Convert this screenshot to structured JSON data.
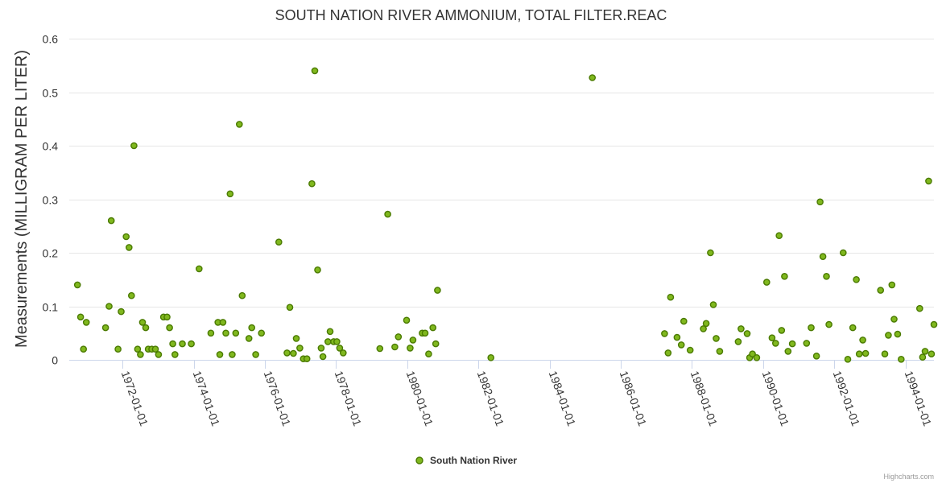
{
  "chart_data": {
    "type": "scatter",
    "title": "SOUTH NATION RIVER AMMONIUM, TOTAL FILTER.REAC",
    "xlabel": "",
    "ylabel": "Measurements (MILLIGRAM PER LITER)",
    "ylim": [
      0,
      0.6
    ],
    "yticks": [
      0,
      0.1,
      0.2,
      0.3,
      0.4,
      0.5,
      0.6
    ],
    "ytick_labels": [
      "0",
      "0.1",
      "0.2",
      "0.3",
      "0.4",
      "0.5",
      "0.6"
    ],
    "xlim": [
      1970.5,
      1994.8
    ],
    "xticks": [
      1972,
      1974,
      1976,
      1978,
      1980,
      1982,
      1984,
      1986,
      1988,
      1990,
      1992,
      1994
    ],
    "xtick_labels": [
      "1972-01-01",
      "1974-01-01",
      "1976-01-01",
      "1978-01-01",
      "1980-01-01",
      "1982-01-01",
      "1984-01-01",
      "1986-01-01",
      "1988-01-01",
      "1990-01-01",
      "1992-01-01",
      "1994-01-01"
    ],
    "grid": true,
    "legend_position": "bottom-center",
    "series": [
      {
        "name": "South Nation River",
        "color": "#80b81e",
        "stroke": "#4a7a00",
        "points": [
          [
            1970.73,
            0.14
          ],
          [
            1970.82,
            0.08
          ],
          [
            1970.9,
            0.02
          ],
          [
            1970.98,
            0.07
          ],
          [
            1971.52,
            0.06
          ],
          [
            1971.62,
            0.1
          ],
          [
            1971.68,
            0.26
          ],
          [
            1971.87,
            0.02
          ],
          [
            1971.96,
            0.09
          ],
          [
            1972.1,
            0.23
          ],
          [
            1972.18,
            0.21
          ],
          [
            1972.25,
            0.12
          ],
          [
            1972.32,
            0.4
          ],
          [
            1972.42,
            0.02
          ],
          [
            1972.5,
            0.01
          ],
          [
            1972.56,
            0.07
          ],
          [
            1972.65,
            0.06
          ],
          [
            1972.72,
            0.02
          ],
          [
            1972.82,
            0.02
          ],
          [
            1972.92,
            0.02
          ],
          [
            1973.01,
            0.01
          ],
          [
            1973.15,
            0.08
          ],
          [
            1973.25,
            0.08
          ],
          [
            1973.32,
            0.06
          ],
          [
            1973.41,
            0.03
          ],
          [
            1973.47,
            0.01
          ],
          [
            1973.68,
            0.03
          ],
          [
            1973.93,
            0.03
          ],
          [
            1974.15,
            0.17
          ],
          [
            1974.48,
            0.05
          ],
          [
            1974.68,
            0.07
          ],
          [
            1974.73,
            0.01
          ],
          [
            1974.82,
            0.07
          ],
          [
            1974.9,
            0.05
          ],
          [
            1975.02,
            0.31
          ],
          [
            1975.08,
            0.01
          ],
          [
            1975.18,
            0.05
          ],
          [
            1975.28,
            0.44
          ],
          [
            1975.36,
            0.12
          ],
          [
            1975.55,
            0.04
          ],
          [
            1975.63,
            0.06
          ],
          [
            1975.74,
            0.01
          ],
          [
            1975.9,
            0.05
          ],
          [
            1976.39,
            0.22
          ],
          [
            1976.62,
            0.013
          ],
          [
            1976.7,
            0.098
          ],
          [
            1976.8,
            0.012
          ],
          [
            1976.88,
            0.04
          ],
          [
            1976.98,
            0.022
          ],
          [
            1977.08,
            0.002
          ],
          [
            1977.18,
            0.002
          ],
          [
            1977.32,
            0.329
          ],
          [
            1977.4,
            0.54
          ],
          [
            1977.48,
            0.168
          ],
          [
            1977.58,
            0.022
          ],
          [
            1977.63,
            0.006
          ],
          [
            1977.77,
            0.034
          ],
          [
            1977.83,
            0.053
          ],
          [
            1977.93,
            0.034
          ],
          [
            1978.02,
            0.034
          ],
          [
            1978.1,
            0.022
          ],
          [
            1978.2,
            0.013
          ],
          [
            1979.23,
            0.021
          ],
          [
            1979.45,
            0.272
          ],
          [
            1979.65,
            0.024
          ],
          [
            1979.75,
            0.043
          ],
          [
            1979.98,
            0.074
          ],
          [
            1980.08,
            0.022
          ],
          [
            1980.16,
            0.037
          ],
          [
            1980.42,
            0.05
          ],
          [
            1980.5,
            0.05
          ],
          [
            1980.6,
            0.011
          ],
          [
            1980.72,
            0.06
          ],
          [
            1980.8,
            0.03
          ],
          [
            1980.85,
            0.13
          ],
          [
            1982.35,
            0.004
          ],
          [
            1985.2,
            0.527
          ],
          [
            1987.23,
            0.049
          ],
          [
            1987.33,
            0.013
          ],
          [
            1987.4,
            0.117
          ],
          [
            1987.58,
            0.042
          ],
          [
            1987.7,
            0.028
          ],
          [
            1987.77,
            0.072
          ],
          [
            1987.95,
            0.018
          ],
          [
            1988.32,
            0.058
          ],
          [
            1988.4,
            0.068
          ],
          [
            1988.52,
            0.2
          ],
          [
            1988.6,
            0.103
          ],
          [
            1988.68,
            0.04
          ],
          [
            1988.78,
            0.016
          ],
          [
            1989.3,
            0.034
          ],
          [
            1989.38,
            0.058
          ],
          [
            1989.55,
            0.049
          ],
          [
            1989.62,
            0.004
          ],
          [
            1989.7,
            0.011
          ],
          [
            1989.82,
            0.004
          ],
          [
            1990.1,
            0.145
          ],
          [
            1990.25,
            0.041
          ],
          [
            1990.35,
            0.031
          ],
          [
            1990.45,
            0.232
          ],
          [
            1990.52,
            0.055
          ],
          [
            1990.6,
            0.156
          ],
          [
            1990.7,
            0.016
          ],
          [
            1990.82,
            0.03
          ],
          [
            1991.22,
            0.031
          ],
          [
            1991.35,
            0.06
          ],
          [
            1991.5,
            0.007
          ],
          [
            1991.6,
            0.295
          ],
          [
            1991.68,
            0.193
          ],
          [
            1991.78,
            0.156
          ],
          [
            1991.85,
            0.066
          ],
          [
            1992.25,
            0.2
          ],
          [
            1992.38,
            0.001
          ],
          [
            1992.52,
            0.06
          ],
          [
            1992.62,
            0.15
          ],
          [
            1992.7,
            0.011
          ],
          [
            1992.8,
            0.037
          ],
          [
            1992.88,
            0.012
          ],
          [
            1993.3,
            0.13
          ],
          [
            1993.42,
            0.011
          ],
          [
            1993.52,
            0.046
          ],
          [
            1993.62,
            0.14
          ],
          [
            1993.68,
            0.076
          ],
          [
            1993.78,
            0.048
          ],
          [
            1993.88,
            0.001
          ],
          [
            1994.4,
            0.096
          ],
          [
            1994.48,
            0.005
          ],
          [
            1994.55,
            0.016
          ],
          [
            1994.65,
            0.334
          ],
          [
            1994.73,
            0.011
          ],
          [
            1994.8,
            0.066
          ]
        ]
      }
    ]
  },
  "credits": "Highcharts.com"
}
